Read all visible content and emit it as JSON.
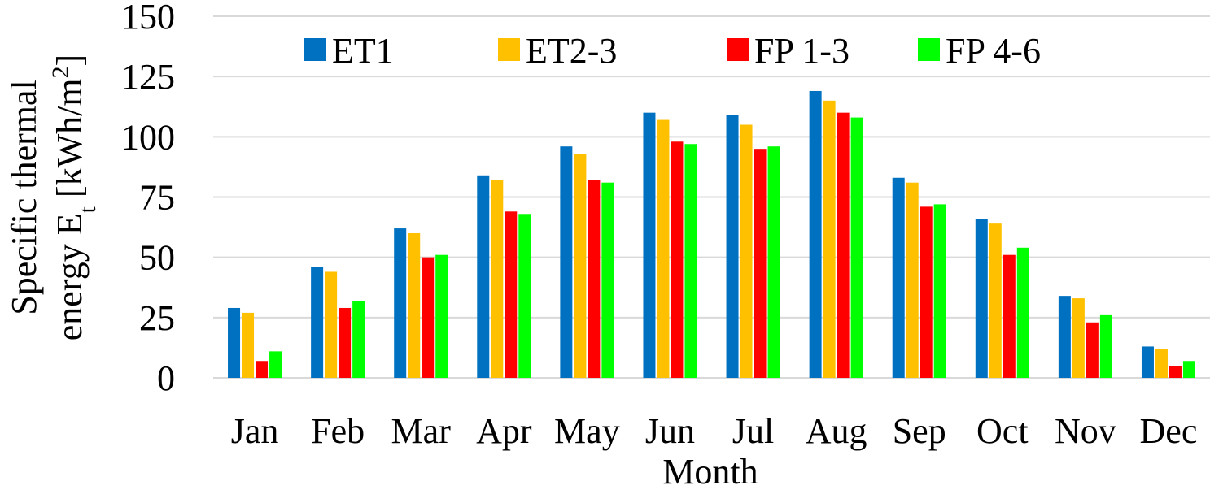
{
  "chart_data": {
    "type": "bar",
    "title": "",
    "xlabel": "Month",
    "ylabel": {
      "line1": "Specific thermal",
      "line2_prefix": "energy E",
      "line2_sub": "t",
      "line2_unit": " [kWh/m",
      "line2_sup": "2",
      "line2_end": "]"
    },
    "ylim": [
      0,
      150
    ],
    "yticks": [
      0,
      25,
      50,
      75,
      100,
      125,
      150
    ],
    "grid": true,
    "legend_position": "top",
    "categories": [
      "Jan",
      "Feb",
      "Mar",
      "Apr",
      "May",
      "Jun",
      "Jul",
      "Aug",
      "Sep",
      "Oct",
      "Nov",
      "Dec"
    ],
    "series": [
      {
        "name": "ET1",
        "color": "#0070c0",
        "values": [
          29,
          46,
          62,
          84,
          96,
          110,
          109,
          119,
          83,
          66,
          34,
          13
        ]
      },
      {
        "name": "ET2-3",
        "color": "#ffc000",
        "values": [
          27,
          44,
          60,
          82,
          93,
          107,
          105,
          115,
          81,
          64,
          33,
          12
        ]
      },
      {
        "name": "FP 1-3",
        "color": "#ff0000",
        "values": [
          7,
          29,
          50,
          69,
          82,
          98,
          95,
          110,
          71,
          51,
          23,
          5
        ]
      },
      {
        "name": "FP 4-6",
        "color": "#00ff00",
        "values": [
          11,
          32,
          51,
          68,
          81,
          97,
          96,
          108,
          72,
          54,
          26,
          7
        ]
      }
    ]
  }
}
